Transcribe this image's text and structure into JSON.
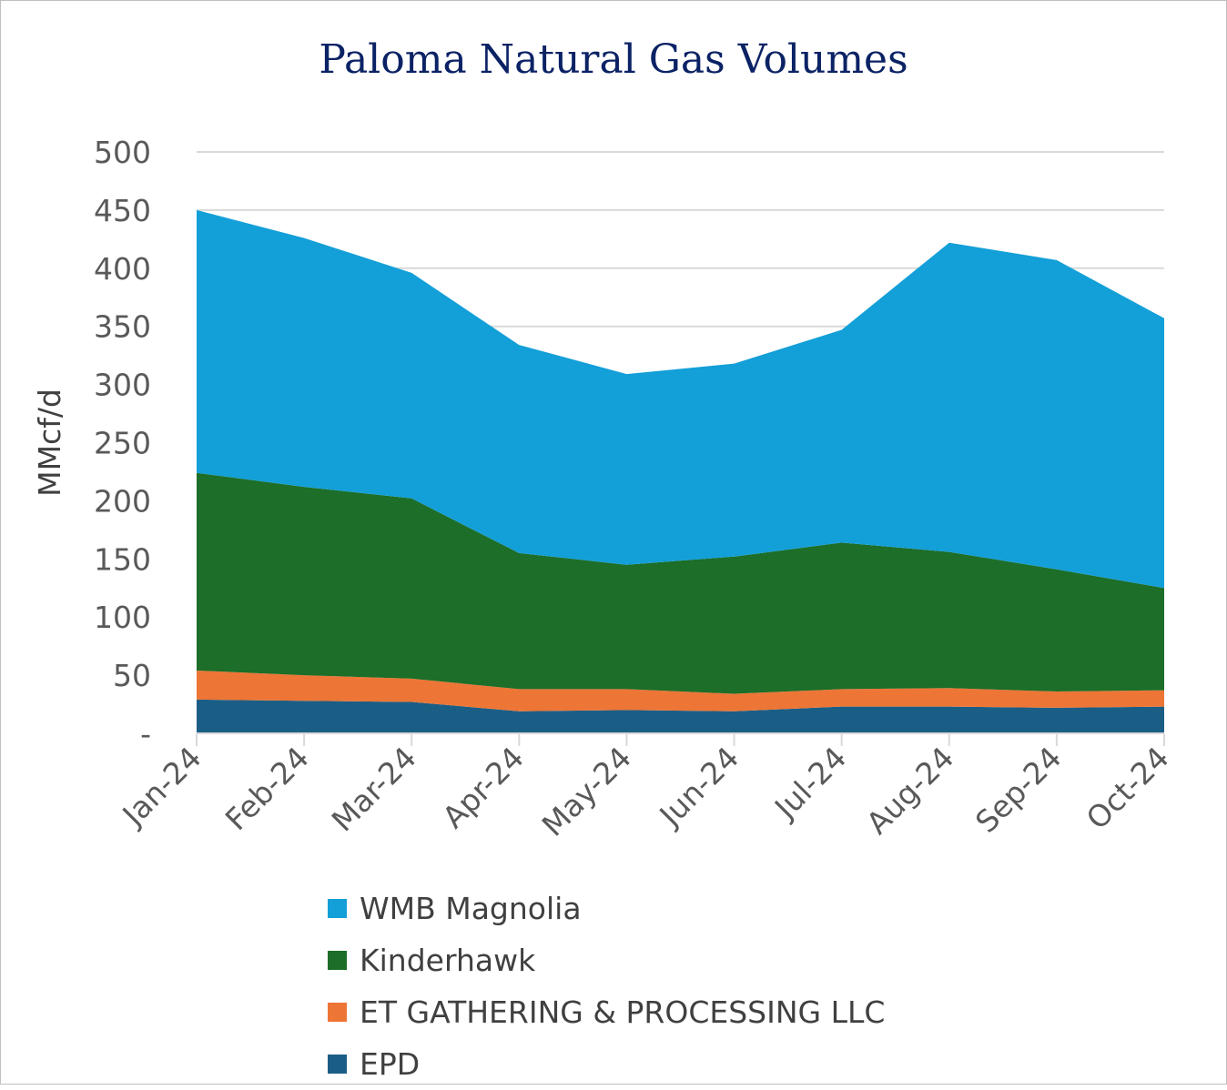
{
  "chart_data": {
    "type": "area",
    "stacked": true,
    "title": "Paloma Natural Gas Volumes",
    "ylabel": "MMcf/d",
    "xlabel": "",
    "ylim": [
      0,
      500
    ],
    "yticks": [
      0,
      50,
      100,
      150,
      200,
      250,
      300,
      350,
      400,
      450,
      500
    ],
    "ytick_labels": [
      "-",
      "50",
      "100",
      "150",
      "200",
      "250",
      "300",
      "350",
      "400",
      "450",
      "500"
    ],
    "categories": [
      "Jan-24",
      "Feb-24",
      "Mar-24",
      "Apr-24",
      "May-24",
      "Jun-24",
      "Jul-24",
      "Aug-24",
      "Sep-24",
      "Oct-24"
    ],
    "gridlines": true,
    "legend_position": "bottom",
    "series": [
      {
        "name": "EPD",
        "color": "#1b5e85",
        "values": [
          29,
          28,
          27,
          19,
          20,
          19,
          23,
          23,
          22,
          23
        ]
      },
      {
        "name": "ET GATHERING & PROCESSING LLC",
        "color": "#ed7536",
        "values": [
          25,
          22,
          20,
          19,
          18,
          15,
          15,
          16,
          14,
          14
        ]
      },
      {
        "name": "Kinderhawk",
        "color": "#1c6e28",
        "values": [
          170,
          162,
          155,
          117,
          107,
          118,
          126,
          117,
          105,
          88
        ]
      },
      {
        "name": "WMB Magnolia",
        "color": "#139fd8",
        "values": [
          226,
          214,
          194,
          179,
          164,
          166,
          183,
          266,
          266,
          232
        ]
      }
    ],
    "legend_order": [
      "WMB Magnolia",
      "Kinderhawk",
      "ET GATHERING & PROCESSING LLC",
      "EPD"
    ]
  }
}
